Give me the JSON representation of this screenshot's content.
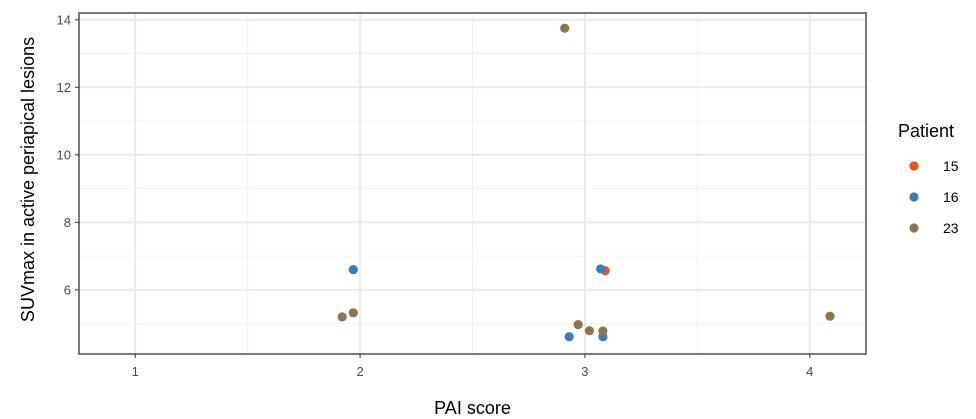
{
  "chart_data": {
    "type": "scatter",
    "title": "",
    "xlabel": "PAI score",
    "ylabel": "SUVmax in active periapical lesions",
    "xlim": [
      0.75,
      4.25
    ],
    "ylim": [
      4.1,
      14.2
    ],
    "x_ticks": [
      "1",
      "2",
      "3",
      "4"
    ],
    "y_ticks": [
      "6",
      "8",
      "10",
      "12",
      "14"
    ],
    "grid": true,
    "legend": {
      "title": "Patient",
      "placement": "right"
    },
    "series": [
      {
        "name": "15",
        "color": "#e8541e",
        "points": [
          {
            "x": 3.09,
            "y": 6.57
          }
        ]
      },
      {
        "name": "16",
        "color": "#377eb8",
        "points": [
          {
            "x": 1.97,
            "y": 6.6
          },
          {
            "x": 3.07,
            "y": 6.62
          },
          {
            "x": 2.93,
            "y": 4.61
          },
          {
            "x": 3.08,
            "y": 4.61
          }
        ]
      },
      {
        "name": "23",
        "color": "#8f7452",
        "points": [
          {
            "x": 2.91,
            "y": 13.75
          },
          {
            "x": 1.92,
            "y": 5.2
          },
          {
            "x": 1.97,
            "y": 5.32
          },
          {
            "x": 2.97,
            "y": 4.97
          },
          {
            "x": 3.02,
            "y": 4.79
          },
          {
            "x": 3.08,
            "y": 4.78
          },
          {
            "x": 4.09,
            "y": 5.22
          }
        ]
      }
    ]
  }
}
